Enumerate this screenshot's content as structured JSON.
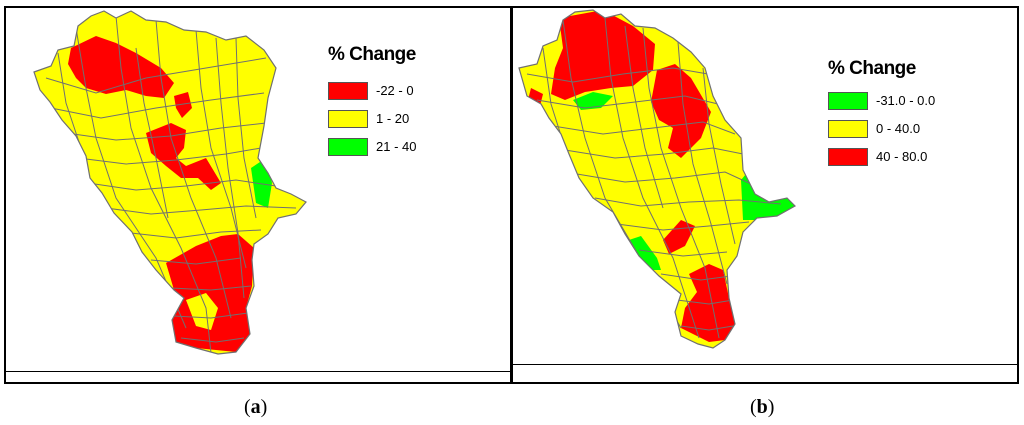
{
  "panels": [
    {
      "id": "a",
      "legend": {
        "title": "% Change",
        "entries": [
          {
            "label": "-22 - 0",
            "color": "#ff0000"
          },
          {
            "label": "1 - 20",
            "color": "#ffff00"
          },
          {
            "label": "21 - 40",
            "color": "#00ff00"
          }
        ]
      },
      "caption": {
        "open": "(",
        "letter": "a",
        "close": ")"
      }
    },
    {
      "id": "b",
      "legend": {
        "title": "% Change",
        "entries": [
          {
            "label": "-31.0 - 0.0",
            "color": "#00ff00"
          },
          {
            "label": "0 - 40.0",
            "color": "#ffff00"
          },
          {
            "label": "40 - 80.0",
            "color": "#ff0000"
          }
        ]
      },
      "caption": {
        "open": "(",
        "letter": "b",
        "close": ")"
      }
    }
  ],
  "colors": {
    "fill_yellow": "#ffff00",
    "fill_red": "#ff0000",
    "fill_green": "#00ff00",
    "boundary": "#707070"
  }
}
